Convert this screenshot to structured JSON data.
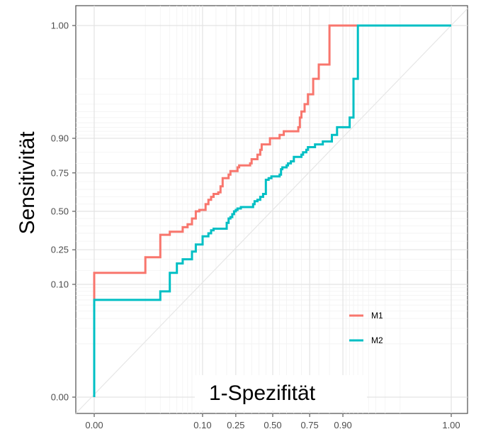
{
  "chart_data": {
    "type": "line",
    "title": "",
    "xlabel": "1-Spezifität",
    "ylabel": "Sensitivität",
    "xlim": [
      0,
      1
    ],
    "ylim": [
      0,
      1
    ],
    "x_scale": "probit",
    "y_scale": "probit",
    "x_ticks": [
      {
        "value": 0.0,
        "label": "0.00"
      },
      {
        "value": 0.1,
        "label": "0.10"
      },
      {
        "value": 0.25,
        "label": "0.25"
      },
      {
        "value": 0.5,
        "label": "0.50"
      },
      {
        "value": 0.75,
        "label": "0.75"
      },
      {
        "value": 0.9,
        "label": "0.90"
      },
      {
        "value": 1.0,
        "label": "1.00"
      }
    ],
    "y_ticks": [
      {
        "value": 0.0,
        "label": "0.00"
      },
      {
        "value": 0.1,
        "label": "0.10"
      },
      {
        "value": 0.25,
        "label": "0.25"
      },
      {
        "value": 0.5,
        "label": "0.50"
      },
      {
        "value": 0.75,
        "label": "0.75"
      },
      {
        "value": 0.9,
        "label": "0.90"
      },
      {
        "value": 1.0,
        "label": "1.00"
      }
    ],
    "grid": true,
    "reference_line": "diagonal",
    "legend_position": "bottom-right",
    "series": [
      {
        "name": "M1",
        "color": "#f8766d",
        "points": [
          [
            0.0,
            0.0
          ],
          [
            0.0,
            0.06
          ],
          [
            0.0,
            0.14
          ],
          [
            0.01,
            0.14
          ],
          [
            0.01,
            0.21
          ],
          [
            0.02,
            0.21
          ],
          [
            0.02,
            0.34
          ],
          [
            0.03,
            0.34
          ],
          [
            0.03,
            0.36
          ],
          [
            0.05,
            0.36
          ],
          [
            0.05,
            0.39
          ],
          [
            0.06,
            0.39
          ],
          [
            0.06,
            0.41
          ],
          [
            0.07,
            0.41
          ],
          [
            0.07,
            0.45
          ],
          [
            0.08,
            0.45
          ],
          [
            0.08,
            0.5
          ],
          [
            0.09,
            0.5
          ],
          [
            0.09,
            0.51
          ],
          [
            0.11,
            0.51
          ],
          [
            0.11,
            0.55
          ],
          [
            0.12,
            0.55
          ],
          [
            0.12,
            0.58
          ],
          [
            0.13,
            0.58
          ],
          [
            0.13,
            0.6
          ],
          [
            0.14,
            0.6
          ],
          [
            0.14,
            0.62
          ],
          [
            0.16,
            0.62
          ],
          [
            0.16,
            0.63
          ],
          [
            0.17,
            0.63
          ],
          [
            0.17,
            0.67
          ],
          [
            0.18,
            0.67
          ],
          [
            0.18,
            0.72
          ],
          [
            0.21,
            0.72
          ],
          [
            0.21,
            0.74
          ],
          [
            0.22,
            0.74
          ],
          [
            0.22,
            0.76
          ],
          [
            0.26,
            0.76
          ],
          [
            0.26,
            0.78
          ],
          [
            0.27,
            0.78
          ],
          [
            0.27,
            0.79
          ],
          [
            0.34,
            0.79
          ],
          [
            0.34,
            0.8
          ],
          [
            0.35,
            0.8
          ],
          [
            0.35,
            0.82
          ],
          [
            0.39,
            0.82
          ],
          [
            0.39,
            0.84
          ],
          [
            0.41,
            0.84
          ],
          [
            0.41,
            0.86
          ],
          [
            0.42,
            0.86
          ],
          [
            0.42,
            0.88
          ],
          [
            0.48,
            0.88
          ],
          [
            0.48,
            0.9
          ],
          [
            0.55,
            0.9
          ],
          [
            0.55,
            0.91
          ],
          [
            0.58,
            0.91
          ],
          [
            0.58,
            0.92
          ],
          [
            0.68,
            0.92
          ],
          [
            0.68,
            0.93
          ],
          [
            0.69,
            0.93
          ],
          [
            0.69,
            0.95
          ],
          [
            0.7,
            0.95
          ],
          [
            0.7,
            0.96
          ],
          [
            0.72,
            0.96
          ],
          [
            0.72,
            0.97
          ],
          [
            0.74,
            0.97
          ],
          [
            0.74,
            0.98
          ],
          [
            0.77,
            0.98
          ],
          [
            0.77,
            0.99
          ],
          [
            0.8,
            0.99
          ],
          [
            0.8,
            0.995
          ],
          [
            0.85,
            0.995
          ],
          [
            0.85,
            1.0
          ],
          [
            1.0,
            1.0
          ]
        ]
      },
      {
        "name": "M2",
        "color": "#00bfc4",
        "points": [
          [
            0.0,
            0.0
          ],
          [
            0.0,
            0.06
          ],
          [
            0.02,
            0.06
          ],
          [
            0.02,
            0.08
          ],
          [
            0.03,
            0.08
          ],
          [
            0.03,
            0.14
          ],
          [
            0.04,
            0.14
          ],
          [
            0.04,
            0.18
          ],
          [
            0.05,
            0.18
          ],
          [
            0.05,
            0.2
          ],
          [
            0.07,
            0.2
          ],
          [
            0.07,
            0.24
          ],
          [
            0.08,
            0.24
          ],
          [
            0.08,
            0.28
          ],
          [
            0.1,
            0.28
          ],
          [
            0.1,
            0.33
          ],
          [
            0.12,
            0.33
          ],
          [
            0.12,
            0.35
          ],
          [
            0.13,
            0.35
          ],
          [
            0.13,
            0.37
          ],
          [
            0.14,
            0.37
          ],
          [
            0.14,
            0.38
          ],
          [
            0.2,
            0.38
          ],
          [
            0.2,
            0.42
          ],
          [
            0.21,
            0.42
          ],
          [
            0.21,
            0.45
          ],
          [
            0.22,
            0.45
          ],
          [
            0.22,
            0.46
          ],
          [
            0.23,
            0.46
          ],
          [
            0.23,
            0.48
          ],
          [
            0.24,
            0.48
          ],
          [
            0.24,
            0.5
          ],
          [
            0.25,
            0.5
          ],
          [
            0.25,
            0.51
          ],
          [
            0.26,
            0.51
          ],
          [
            0.26,
            0.52
          ],
          [
            0.28,
            0.52
          ],
          [
            0.28,
            0.53
          ],
          [
            0.36,
            0.53
          ],
          [
            0.36,
            0.55
          ],
          [
            0.37,
            0.55
          ],
          [
            0.37,
            0.57
          ],
          [
            0.39,
            0.57
          ],
          [
            0.39,
            0.58
          ],
          [
            0.41,
            0.58
          ],
          [
            0.41,
            0.6
          ],
          [
            0.43,
            0.6
          ],
          [
            0.43,
            0.62
          ],
          [
            0.45,
            0.62
          ],
          [
            0.45,
            0.71
          ],
          [
            0.47,
            0.71
          ],
          [
            0.47,
            0.72
          ],
          [
            0.49,
            0.72
          ],
          [
            0.49,
            0.73
          ],
          [
            0.55,
            0.73
          ],
          [
            0.55,
            0.74
          ],
          [
            0.56,
            0.74
          ],
          [
            0.56,
            0.77
          ],
          [
            0.57,
            0.77
          ],
          [
            0.57,
            0.78
          ],
          [
            0.6,
            0.78
          ],
          [
            0.6,
            0.79
          ],
          [
            0.61,
            0.79
          ],
          [
            0.61,
            0.8
          ],
          [
            0.63,
            0.8
          ],
          [
            0.63,
            0.81
          ],
          [
            0.65,
            0.81
          ],
          [
            0.65,
            0.83
          ],
          [
            0.7,
            0.83
          ],
          [
            0.7,
            0.84
          ],
          [
            0.71,
            0.84
          ],
          [
            0.71,
            0.85
          ],
          [
            0.73,
            0.85
          ],
          [
            0.73,
            0.86
          ],
          [
            0.74,
            0.86
          ],
          [
            0.74,
            0.87
          ],
          [
            0.78,
            0.87
          ],
          [
            0.78,
            0.88
          ],
          [
            0.82,
            0.88
          ],
          [
            0.82,
            0.89
          ],
          [
            0.86,
            0.89
          ],
          [
            0.86,
            0.91
          ],
          [
            0.88,
            0.91
          ],
          [
            0.88,
            0.93
          ],
          [
            0.92,
            0.93
          ],
          [
            0.92,
            0.95
          ],
          [
            0.93,
            0.95
          ],
          [
            0.93,
            0.99
          ],
          [
            0.94,
            0.99
          ],
          [
            0.94,
            1.0
          ],
          [
            1.0,
            1.0
          ]
        ]
      }
    ]
  }
}
